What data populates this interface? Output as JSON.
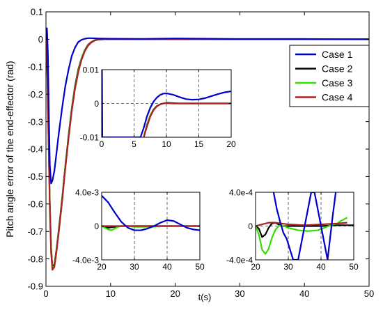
{
  "chart_data": [
    {
      "id": "main",
      "type": "line",
      "ylabel": "Pitch angle error of the end-effector (rad)",
      "xlabel": "t(s)",
      "xlim": [
        0,
        50
      ],
      "ylim": [
        -0.9,
        0.1
      ],
      "x_ticks": [
        0,
        10,
        20,
        30,
        40,
        50
      ],
      "y_ticks": [
        0.1,
        0,
        -0.1,
        -0.2,
        -0.3,
        -0.4,
        -0.5,
        -0.6,
        -0.7,
        -0.8,
        -0.9
      ],
      "y_tick_labels": [
        "0.1",
        "0",
        "-0.1",
        "-0.2",
        "-0.3",
        "-0.4",
        "-0.5",
        "-0.6",
        "-0.7",
        "-0.8",
        "-0.9"
      ],
      "grid": false,
      "legend_position": "top-right",
      "series": [
        {
          "name": "Case 1",
          "color": "#0000cc",
          "x": [
            0,
            0.15,
            0.3,
            0.45,
            0.6,
            0.8,
            1.0,
            1.3,
            1.6,
            2.0,
            2.5,
            3.0,
            3.5,
            4.0,
            4.5,
            5.0,
            5.5,
            6.0,
            6.5,
            7.0,
            8.0,
            10,
            15,
            20,
            30,
            40,
            50
          ],
          "y": [
            0,
            0.04,
            -0.05,
            -0.28,
            -0.46,
            -0.525,
            -0.515,
            -0.48,
            -0.42,
            -0.34,
            -0.25,
            -0.17,
            -0.11,
            -0.06,
            -0.03,
            -0.01,
            -0.002,
            0.002,
            0.004,
            0.004,
            0.003,
            0.002,
            0.0015,
            0.003,
            0.001,
            0.001,
            0
          ]
        },
        {
          "name": "Case 2",
          "color": "#000000",
          "x": [
            0,
            0.2,
            0.4,
            0.6,
            0.8,
            1.0,
            1.3,
            1.6,
            2.0,
            2.5,
            3.0,
            3.5,
            4.0,
            4.5,
            5.0,
            5.5,
            6.0,
            6.5,
            7.0,
            7.5,
            8.0,
            9.0,
            10,
            20,
            50
          ],
          "y": [
            0,
            -0.1,
            -0.35,
            -0.6,
            -0.76,
            -0.83,
            -0.82,
            -0.77,
            -0.69,
            -0.58,
            -0.46,
            -0.35,
            -0.25,
            -0.17,
            -0.11,
            -0.07,
            -0.04,
            -0.02,
            -0.01,
            -0.004,
            -0.001,
            0,
            0,
            0,
            0
          ]
        },
        {
          "name": "Case 3",
          "color": "#33dd00",
          "x": [
            0,
            0.2,
            0.4,
            0.6,
            0.8,
            1.0,
            1.3,
            1.6,
            2.0,
            2.5,
            3.0,
            3.5,
            4.0,
            4.5,
            5.0,
            5.5,
            6.0,
            6.5,
            7.0,
            7.5,
            8.0,
            9.0,
            10,
            20,
            50
          ],
          "y": [
            0,
            -0.11,
            -0.36,
            -0.61,
            -0.77,
            -0.835,
            -0.825,
            -0.775,
            -0.695,
            -0.585,
            -0.465,
            -0.355,
            -0.255,
            -0.175,
            -0.115,
            -0.072,
            -0.042,
            -0.022,
            -0.011,
            -0.005,
            -0.0015,
            0,
            0,
            0,
            0
          ]
        },
        {
          "name": "Case 4",
          "color": "#aa2222",
          "x": [
            0,
            0.2,
            0.4,
            0.6,
            0.8,
            1.0,
            1.3,
            1.6,
            2.0,
            2.5,
            3.0,
            3.5,
            4.0,
            4.5,
            5.0,
            5.5,
            6.0,
            6.5,
            7.0,
            7.5,
            8.0,
            9.0,
            10,
            20,
            50
          ],
          "y": [
            0,
            -0.12,
            -0.37,
            -0.62,
            -0.78,
            -0.84,
            -0.83,
            -0.78,
            -0.7,
            -0.59,
            -0.47,
            -0.36,
            -0.26,
            -0.18,
            -0.12,
            -0.075,
            -0.044,
            -0.024,
            -0.012,
            -0.005,
            -0.0015,
            0,
            0,
            0,
            0
          ]
        }
      ]
    },
    {
      "id": "inset-a",
      "type": "line",
      "xlim": [
        0,
        20
      ],
      "ylim": [
        -0.01,
        0.01
      ],
      "x_ticks": [
        0,
        5,
        10,
        15,
        20
      ],
      "y_ticks": [
        0.01,
        0,
        -0.01
      ],
      "y_tick_labels": [
        "0.01",
        "0",
        "-0.01"
      ],
      "grid": true,
      "series": [
        {
          "name": "Case 1",
          "color": "#0000cc",
          "x": [
            0,
            0.05,
            0.1,
            6.0,
            6.5,
            7,
            7.5,
            8,
            8.5,
            9,
            9.5,
            10,
            11,
            12,
            13,
            14,
            15,
            16,
            17,
            18,
            19,
            20
          ],
          "y": [
            -0.01,
            0.01,
            -0.01,
            -0.01,
            -0.0072,
            -0.0038,
            -0.0013,
            0.0005,
            0.0017,
            0.0025,
            0.0029,
            0.003,
            0.0026,
            0.0019,
            0.0013,
            0.0011,
            0.0012,
            0.0016,
            0.0022,
            0.0028,
            0.0033,
            0.0036
          ]
        },
        {
          "name": "Case 2",
          "color": "#000000",
          "x": [
            6.5,
            7,
            7.5,
            8,
            8.5,
            9,
            9.5,
            10,
            11,
            12,
            20
          ],
          "y": [
            -0.01,
            -0.0063,
            -0.0036,
            -0.0018,
            -0.0008,
            -0.0003,
            0,
            0.0002,
            0.0001,
            0,
            0
          ]
        },
        {
          "name": "Case 3",
          "color": "#33dd00",
          "x": [
            6.5,
            7,
            7.5,
            8,
            8.5,
            9,
            9.5,
            10,
            11,
            12,
            20
          ],
          "y": [
            -0.01,
            -0.0065,
            -0.0037,
            -0.0019,
            -0.0009,
            -0.0003,
            0,
            0.0001,
            0,
            0,
            0
          ]
        },
        {
          "name": "Case 4",
          "color": "#aa2222",
          "x": [
            6.5,
            7,
            7.5,
            8,
            8.5,
            9,
            9.5,
            10,
            11,
            12,
            20
          ],
          "y": [
            -0.01,
            -0.0068,
            -0.0039,
            -0.002,
            -0.0009,
            -0.0003,
            0,
            0.0001,
            0,
            0,
            0
          ]
        }
      ]
    },
    {
      "id": "inset-b",
      "type": "line",
      "xlim": [
        20,
        50
      ],
      "ylim": [
        -0.004,
        0.004
      ],
      "x_ticks": [
        20,
        30,
        40,
        50
      ],
      "y_ticks": [
        0.004,
        0,
        -0.004
      ],
      "y_tick_labels": [
        "4.0e-3",
        "0",
        "-4.0e-3"
      ],
      "grid": true,
      "series": [
        {
          "name": "Case 1",
          "color": "#0000cc",
          "x": [
            20,
            22,
            24,
            26,
            28,
            30,
            32,
            34,
            36,
            38,
            40,
            42,
            44,
            46,
            48,
            50
          ],
          "y": [
            0.0036,
            0.0028,
            0.0016,
            0.0005,
            -0.0002,
            -0.0005,
            -0.0005,
            -0.0003,
            0,
            0.0004,
            0.0007,
            0.0006,
            0.0002,
            -0.0002,
            -0.0004,
            -0.0005
          ]
        },
        {
          "name": "Case 2",
          "color": "#000000",
          "x": [
            20,
            22,
            24,
            26,
            28,
            30,
            35,
            40,
            45,
            50
          ],
          "y": [
            0,
            -0.0002,
            -0.0001,
            0,
            0,
            0,
            0,
            0,
            0,
            0
          ]
        },
        {
          "name": "Case 3",
          "color": "#33dd00",
          "x": [
            20,
            21,
            22,
            23,
            24,
            25,
            26,
            28,
            30,
            35,
            40,
            45,
            50
          ],
          "y": [
            0,
            -0.0002,
            -0.0004,
            -0.0005,
            -0.0003,
            -0.0001,
            0,
            0,
            -0.0001,
            -0.0001,
            0,
            0,
            0
          ]
        },
        {
          "name": "Case 4",
          "color": "#aa2222",
          "x": [
            20,
            30,
            40,
            50
          ],
          "y": [
            0,
            0,
            0,
            0
          ]
        }
      ]
    },
    {
      "id": "inset-c",
      "type": "line",
      "xlim": [
        20,
        50
      ],
      "ylim": [
        -0.0004,
        0.0004
      ],
      "x_ticks": [
        20,
        30,
        40,
        50
      ],
      "y_ticks": [
        0.0004,
        0,
        -0.0004
      ],
      "y_tick_labels": [
        "4.0e-4",
        "0",
        "-4.0e-4"
      ],
      "grid": true,
      "series": [
        {
          "name": "Case 1",
          "color": "#0000cc",
          "x": [
            25.5,
            26.5,
            27.5,
            28.5,
            29.5,
            31.5,
            33,
            34.5,
            35.5,
            37,
            38,
            39,
            40,
            41,
            42,
            43.5,
            44.5
          ],
          "y": [
            0.0004,
            0.0002,
            5e-05,
            -8e-05,
            -0.00015,
            -0.0004,
            -0.0004,
            -0.0001,
            0.0001,
            0.0004,
            0.0004,
            0.0002,
            0,
            -0.0002,
            -0.0004,
            0.0001,
            0.0004
          ]
        },
        {
          "name": "Case 2",
          "color": "#000000",
          "x": [
            20,
            21,
            22,
            23,
            24,
            25,
            26,
            27,
            28,
            30,
            35,
            40,
            45,
            50
          ],
          "y": [
            0,
            -3e-05,
            -0.00013,
            -0.0001,
            -2e-05,
            3e-05,
            4e-05,
            2e-05,
            0,
            0,
            0,
            0,
            1e-05,
            1e-05
          ]
        },
        {
          "name": "Case 3",
          "color": "#33dd00",
          "x": [
            20,
            21,
            22,
            23,
            24,
            25,
            26,
            27,
            28,
            30,
            33,
            36,
            39,
            41,
            43,
            45,
            46,
            47,
            48
          ],
          "y": [
            0,
            -0.0001,
            -0.00028,
            -0.00033,
            -0.00027,
            -0.00014,
            -5e-05,
            0,
            1e-05,
            -2e-05,
            -5e-05,
            -6e-05,
            -5e-05,
            -2e-05,
            1e-05,
            3e-05,
            6e-05,
            8e-05,
            0.0001
          ]
        },
        {
          "name": "Case 4",
          "color": "#aa2222",
          "x": [
            20,
            22,
            24,
            26,
            30,
            35,
            40,
            45,
            48
          ],
          "y": [
            0,
            2e-05,
            4e-05,
            4e-05,
            2e-05,
            1e-05,
            2e-05,
            3e-05,
            4e-05
          ]
        }
      ]
    }
  ]
}
